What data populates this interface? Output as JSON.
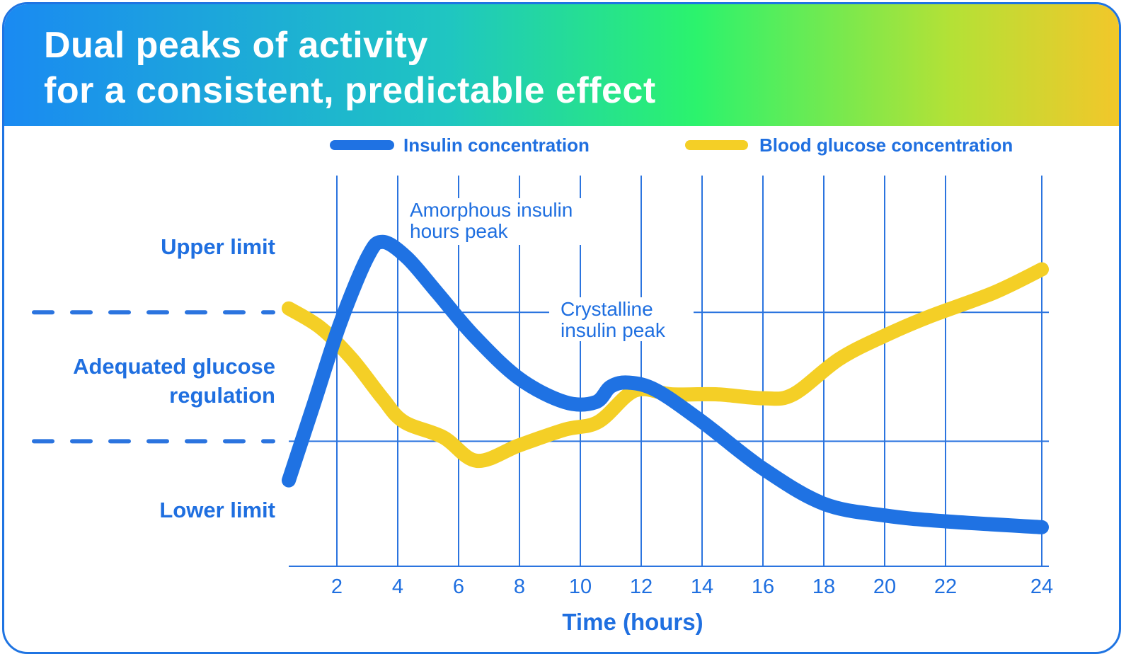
{
  "title": {
    "line1": "Dual peaks of activity",
    "line2": "for a consistent, predictable effect"
  },
  "colors": {
    "insulin": "#1f72e3",
    "glucose": "#f4cf26",
    "grid": "#2b74df",
    "text": "#1f6fe0"
  },
  "chart_data": {
    "type": "line",
    "xlabel": "Time (hours)",
    "x_ticks": [
      2,
      4,
      6,
      8,
      10,
      12,
      14,
      16,
      18,
      20,
      22,
      24
    ],
    "xlim": [
      0.5,
      24.5
    ],
    "ylim": [
      0,
      100
    ],
    "y_labels": {
      "upper": "Upper limit",
      "adequate_line1": "Adequated glucose",
      "adequate_line2": "regulation",
      "lower": "Lower limit"
    },
    "reference_levels": [
      65,
      32
    ],
    "legend": {
      "insulin": "Insulin concentration",
      "glucose": "Blood glucose concentration"
    },
    "annotations": {
      "amorphous_line1": "Amorphous insulin",
      "amorphous_line2": "hours peak",
      "crystalline_line1": "Crystalline",
      "crystalline_line2": "insulin peak"
    },
    "series": [
      {
        "name": "Insulin concentration",
        "x": [
          0.5,
          1.3,
          2.1,
          3.0,
          3.5,
          4.3,
          5.3,
          6.5,
          8.0,
          9.5,
          10.5,
          11.0,
          11.6,
          12.5,
          14.0,
          16.0,
          18.0,
          20.0,
          22.0,
          24.0
        ],
        "y": [
          22,
          42,
          62,
          79,
          83,
          79,
          70,
          59,
          48,
          42,
          42,
          46,
          47,
          45,
          37,
          25,
          16,
          13,
          11.5,
          10
        ]
      },
      {
        "name": "Blood glucose concentration",
        "x": [
          0.5,
          1.5,
          2.5,
          3.5,
          4.2,
          5.5,
          6.6,
          8.0,
          9.5,
          10.6,
          11.8,
          13.0,
          14.5,
          16.0,
          17.0,
          18.5,
          20.0,
          21.5,
          23.0,
          24.0
        ],
        "y": [
          66,
          61,
          53,
          43,
          37,
          33,
          27,
          31,
          35,
          37,
          45,
          44,
          44,
          43,
          44,
          53,
          59,
          64,
          70,
          76
        ]
      }
    ]
  }
}
